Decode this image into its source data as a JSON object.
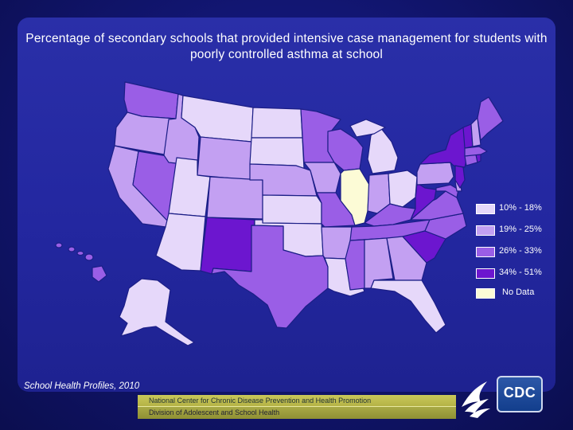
{
  "title": "Percentage of secondary schools that provided intensive case management for students with poorly controlled asthma at school",
  "legend": {
    "bins": [
      {
        "label": "10% - 18%",
        "color": "#e6d8fa"
      },
      {
        "label": "19% - 25%",
        "color": "#c3a0f2"
      },
      {
        "label": "26% - 33%",
        "color": "#9a5ee6"
      },
      {
        "label": "34% - 51%",
        "color": "#6c16cf"
      }
    ],
    "no_data": {
      "label": "No Data",
      "color": "#fcfbd6"
    }
  },
  "state_bins": {
    "WA": 2,
    "OR": 1,
    "CA": 1,
    "NV": 2,
    "ID": 1,
    "MT": 0,
    "WY": 1,
    "UT": 0,
    "AZ": 0,
    "CO": 1,
    "NM": 3,
    "ND": 0,
    "SD": 0,
    "NE": 1,
    "KS": 0,
    "OK": 0,
    "TX": 2,
    "MN": 2,
    "IA": 1,
    "MO": 2,
    "AR": 1,
    "LA": 0,
    "WI": 2,
    "IL": "nd",
    "MI": 0,
    "IN": 1,
    "OH": 0,
    "KY": 2,
    "TN": 2,
    "MS": 2,
    "AL": 1,
    "GA": 1,
    "FL": 0,
    "SC": 3,
    "NC": 2,
    "VA": 2,
    "WV": 3,
    "PA": 1,
    "NY": 3,
    "ME": 2,
    "VT": 3,
    "NH": 1,
    "MA": 2,
    "RI": 3,
    "CT": 2,
    "NJ": 3,
    "DE": 1,
    "MD": 2,
    "AK": 0,
    "HI": 2
  },
  "source": "School Health Profiles, 2010",
  "footer": {
    "line1": "National Center for Chronic Disease Prevention and Health Promotion",
    "line2": "Division of Adolescent and School Health"
  },
  "logos": {
    "hhs": "hhs-eagle-logo",
    "cdc": "CDC"
  }
}
